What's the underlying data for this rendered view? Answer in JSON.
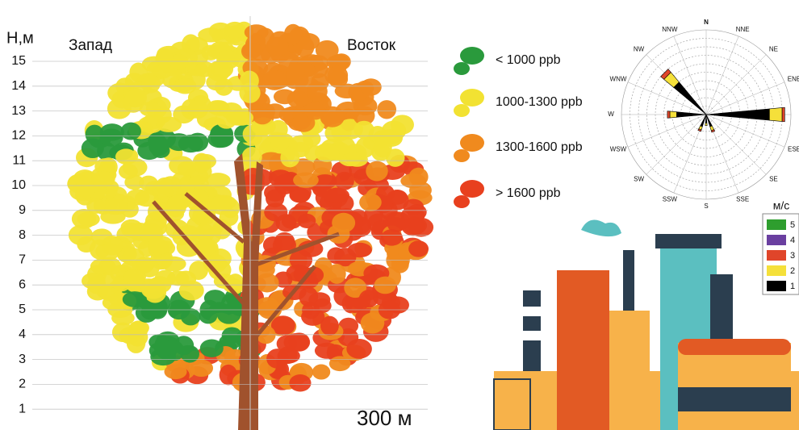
{
  "tree": {
    "axis_label": "Н,м",
    "west_label": "Запад",
    "east_label": "Восток",
    "scale_label": "300 м",
    "height_ticks": [
      1,
      2,
      3,
      4,
      5,
      6,
      7,
      8,
      9,
      10,
      11,
      12,
      13,
      14,
      15
    ]
  },
  "legend": {
    "items": [
      {
        "label": "< 1000 ppb",
        "color": "#2a9a3c"
      },
      {
        "label": "1000-1300 ppb",
        "color": "#f2e232"
      },
      {
        "label": "1300-1600 ppb",
        "color": "#f08a1e"
      },
      {
        "label": "> 1600 ppb",
        "color": "#e8401e"
      }
    ]
  },
  "wind_rose": {
    "directions": [
      "N",
      "NNE",
      "NE",
      "ENE",
      "E",
      "ESE",
      "SE",
      "SSE",
      "S",
      "SSW",
      "SW",
      "WSW",
      "W",
      "WNW",
      "NW",
      "NNW"
    ],
    "rlim": [
      0,
      10
    ],
    "speed_title": "м/с",
    "series": [
      {
        "name": "1",
        "color": "#000000",
        "values": [
          0,
          0,
          0,
          0,
          7.5,
          0,
          0,
          1.5,
          1,
          1.5,
          0,
          0,
          3.5,
          0,
          5,
          0
        ]
      },
      {
        "name": "2",
        "color": "#f5e03a",
        "values": [
          0,
          0,
          0,
          0,
          1.5,
          0,
          0,
          0.5,
          0.3,
          0.4,
          0,
          0,
          0.8,
          0,
          1.5,
          0
        ]
      },
      {
        "name": "3",
        "color": "#e0452a",
        "values": [
          0,
          0,
          0,
          0,
          0.3,
          0,
          0,
          0.2,
          0,
          0.2,
          0,
          0,
          0.3,
          0,
          0.5,
          0
        ]
      },
      {
        "name": "4",
        "color": "#6a3fa0",
        "values": [
          0,
          0,
          0,
          0,
          0,
          0,
          0,
          0,
          0,
          0,
          0,
          0,
          0,
          0,
          0,
          0
        ]
      },
      {
        "name": "5",
        "color": "#2e9e2e",
        "values": [
          0,
          0,
          0,
          0,
          0,
          0,
          0,
          0,
          0,
          0,
          0,
          0,
          0,
          0,
          0,
          0
        ]
      }
    ]
  }
}
